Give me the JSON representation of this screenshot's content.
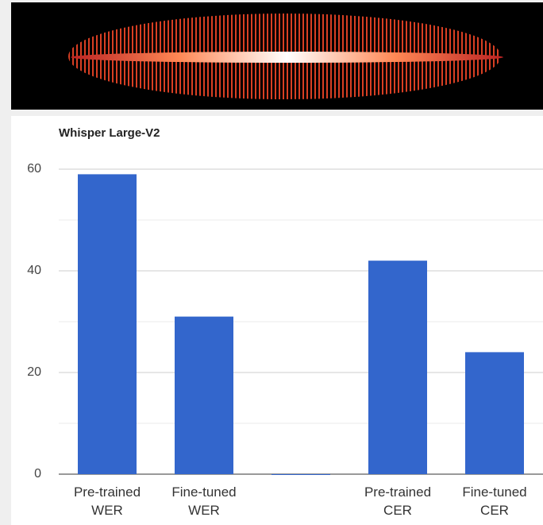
{
  "chart_data": {
    "type": "bar",
    "title": "Whisper Large-V2",
    "categories": [
      "Pre-trained WER",
      "Fine-tuned WER",
      null,
      "Pre-trained CER",
      "Fine-tuned CER"
    ],
    "values": [
      59,
      31,
      0,
      42,
      24
    ],
    "color": "#3366cc",
    "ylim": [
      0,
      60
    ],
    "yticks": [
      0,
      20,
      40,
      60
    ],
    "minor_yticks": [
      10,
      30,
      50
    ],
    "grid": true
  }
}
